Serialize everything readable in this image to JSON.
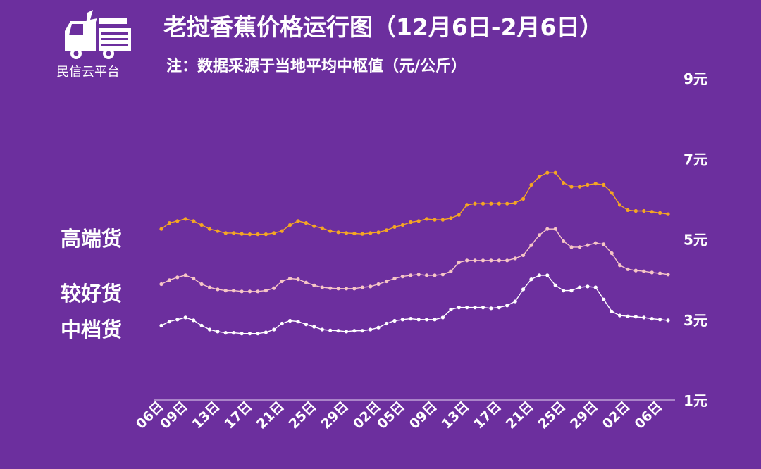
{
  "brand": {
    "name": "民信云平台"
  },
  "chart_data": {
    "type": "line",
    "title": "老挝香蕉价格运行图（12月6日-2月6日）",
    "subtitle": "注：数据采源于当地平均中枢值（元/公斤）",
    "ylim": [
      1,
      9
    ],
    "y_ticks": [
      {
        "value": 1,
        "label": "1元"
      },
      {
        "value": 3,
        "label": "3元"
      },
      {
        "value": 5,
        "label": "5元"
      },
      {
        "value": 7,
        "label": "7元"
      },
      {
        "value": 9,
        "label": "9元"
      }
    ],
    "x_tick_labels": [
      {
        "index": 0,
        "label": "06日"
      },
      {
        "index": 3,
        "label": "09日"
      },
      {
        "index": 7,
        "label": "13日"
      },
      {
        "index": 11,
        "label": "17日"
      },
      {
        "index": 15,
        "label": "21日"
      },
      {
        "index": 19,
        "label": "25日"
      },
      {
        "index": 23,
        "label": "29日"
      },
      {
        "index": 27,
        "label": "02日"
      },
      {
        "index": 30,
        "label": "05日"
      },
      {
        "index": 34,
        "label": "09日"
      },
      {
        "index": 38,
        "label": "13日"
      },
      {
        "index": 42,
        "label": "17日"
      },
      {
        "index": 46,
        "label": "21日"
      },
      {
        "index": 50,
        "label": "25日"
      },
      {
        "index": 54,
        "label": "29日"
      },
      {
        "index": 58,
        "label": "02日"
      },
      {
        "index": 62,
        "label": "06日"
      }
    ],
    "grid": false,
    "series": [
      {
        "name": "高端货",
        "color": "#f5a623",
        "values": [
          5.25,
          5.4,
          5.45,
          5.5,
          5.45,
          5.35,
          5.25,
          5.2,
          5.15,
          5.15,
          5.13,
          5.12,
          5.12,
          5.12,
          5.15,
          5.2,
          5.35,
          5.45,
          5.4,
          5.32,
          5.27,
          5.2,
          5.17,
          5.15,
          5.14,
          5.13,
          5.15,
          5.17,
          5.22,
          5.3,
          5.35,
          5.42,
          5.45,
          5.5,
          5.48,
          5.48,
          5.52,
          5.6,
          5.85,
          5.88,
          5.88,
          5.88,
          5.88,
          5.88,
          5.9,
          6.0,
          6.35,
          6.55,
          6.65,
          6.65,
          6.4,
          6.3,
          6.3,
          6.35,
          6.38,
          6.35,
          6.15,
          5.85,
          5.72,
          5.7,
          5.7,
          5.68,
          5.65,
          5.62
        ]
      },
      {
        "name": "较好货",
        "color": "#f7c6c6",
        "values": [
          3.88,
          3.98,
          4.05,
          4.1,
          4.02,
          3.88,
          3.8,
          3.75,
          3.72,
          3.72,
          3.7,
          3.7,
          3.7,
          3.72,
          3.78,
          3.95,
          4.02,
          4.0,
          3.92,
          3.85,
          3.8,
          3.78,
          3.77,
          3.77,
          3.77,
          3.8,
          3.82,
          3.88,
          3.95,
          4.02,
          4.07,
          4.1,
          4.12,
          4.1,
          4.1,
          4.12,
          4.2,
          4.42,
          4.47,
          4.47,
          4.47,
          4.47,
          4.47,
          4.47,
          4.52,
          4.6,
          4.85,
          5.1,
          5.25,
          5.25,
          4.95,
          4.8,
          4.8,
          4.85,
          4.9,
          4.87,
          4.65,
          4.35,
          4.25,
          4.22,
          4.2,
          4.17,
          4.15,
          4.12
        ]
      },
      {
        "name": "中档货",
        "color": "#ffffff",
        "values": [
          2.85,
          2.95,
          3.0,
          3.05,
          2.98,
          2.85,
          2.75,
          2.7,
          2.67,
          2.67,
          2.65,
          2.65,
          2.65,
          2.68,
          2.75,
          2.9,
          2.97,
          2.95,
          2.88,
          2.82,
          2.75,
          2.73,
          2.72,
          2.7,
          2.72,
          2.72,
          2.75,
          2.8,
          2.9,
          2.97,
          3.0,
          3.02,
          3.0,
          3.0,
          3.0,
          3.05,
          3.25,
          3.3,
          3.3,
          3.3,
          3.3,
          3.28,
          3.3,
          3.35,
          3.45,
          3.75,
          4.0,
          4.1,
          4.1,
          3.85,
          3.72,
          3.72,
          3.8,
          3.82,
          3.8,
          3.5,
          3.2,
          3.1,
          3.08,
          3.07,
          3.05,
          3.02,
          3.0,
          2.98
        ]
      }
    ]
  }
}
